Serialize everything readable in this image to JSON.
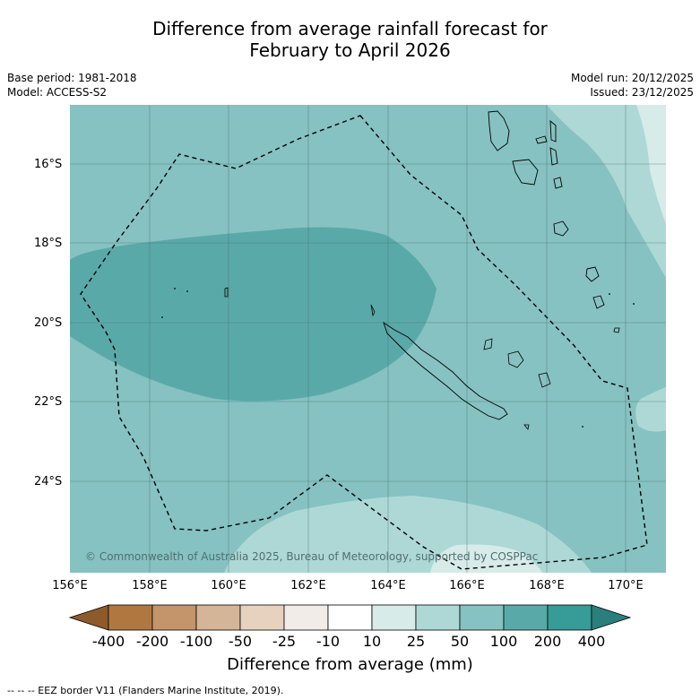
{
  "title_line1": "Difference from average rainfall forecast for",
  "title_line2": "February to April 2026",
  "base_period": "Base period: 1981-2018",
  "model": "Model: ACCESS-S2",
  "model_run": "Model run: 20/12/2025",
  "issued": "Issued: 23/12/2025",
  "lat_labels": [
    "16°S",
    "18°S",
    "20°S",
    "22°S",
    "24°S"
  ],
  "lon_labels": [
    "156°E",
    "158°E",
    "160°E",
    "162°E",
    "164°E",
    "166°E",
    "168°E",
    "170°E"
  ],
  "copyright": "© Commonwealth of Australia 2025, Bureau of Meteorology, supported by COSPPac",
  "colorbar": {
    "title": "Difference from average (mm)",
    "labels": [
      "-400",
      "-200",
      "-100",
      "-50",
      "-25",
      "-10",
      "10",
      "25",
      "50",
      "100",
      "200",
      "400"
    ],
    "colors": [
      "#8c5a2b",
      "#b07840",
      "#c4946a",
      "#d5b597",
      "#e7d2bf",
      "#f1ece8",
      "#ffffff",
      "#d7ebe9",
      "#aed8d6",
      "#86c2c1",
      "#5aa9a9",
      "#379b98",
      "#2a7f7d"
    ]
  },
  "legend_colors": {
    "fill_light": "#aed8d6",
    "fill_mid": "#86c2c1",
    "fill_dark": "#5aa9a9",
    "fill_lightest": "#d7ebe9"
  },
  "footer": "--  --  -- EEZ border V11 (Flanders Marine Institute, 2019)."
}
